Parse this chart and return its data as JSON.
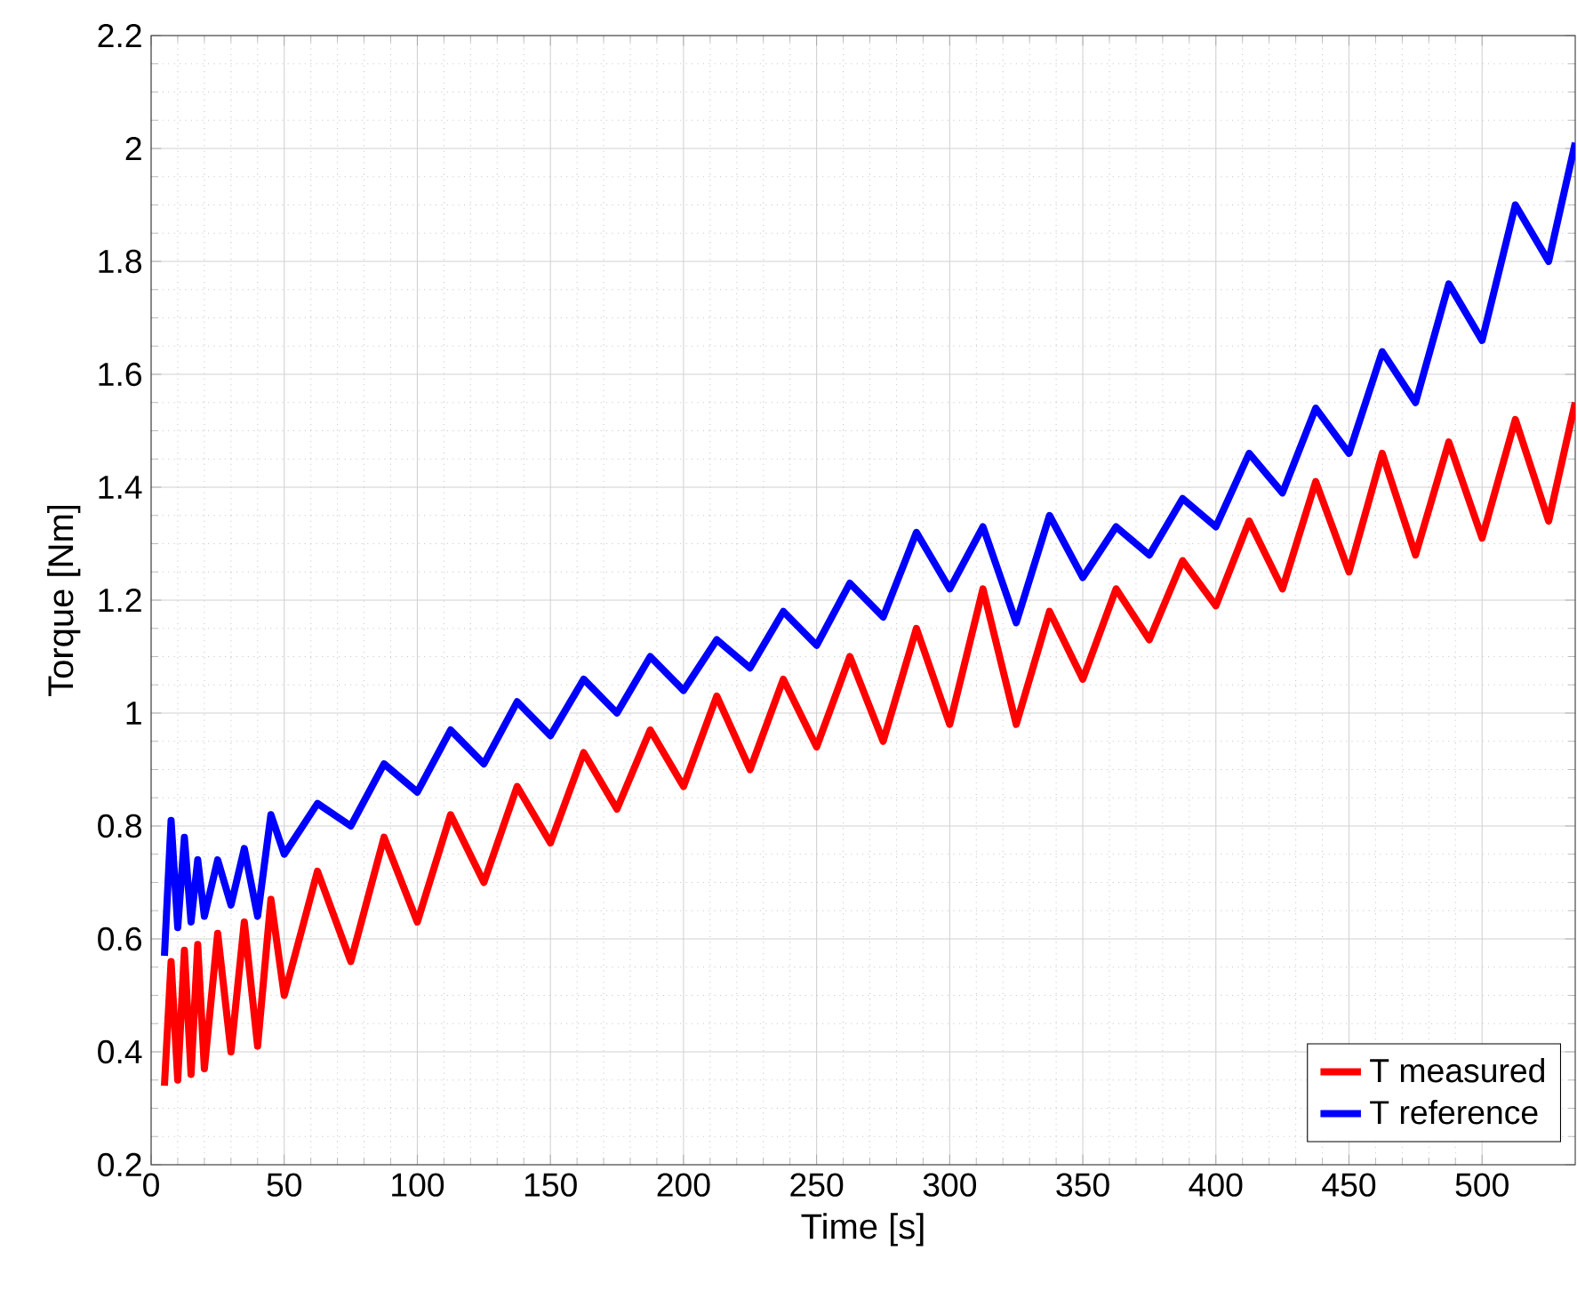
{
  "chart_data": {
    "type": "line",
    "xlabel": "Time [s]",
    "ylabel": "Torque [Nm]",
    "xlim": [
      0,
      535
    ],
    "ylim": [
      0.2,
      2.2
    ],
    "xticks": [
      0,
      50,
      100,
      150,
      200,
      250,
      300,
      350,
      400,
      450,
      500
    ],
    "yticks": [
      0.2,
      0.4,
      0.6,
      0.8,
      1,
      1.2,
      1.4,
      1.6,
      1.8,
      2,
      2.2
    ],
    "grid": true,
    "legend": "bottom right",
    "marker": "none",
    "line_style": "solid",
    "series": [
      {
        "name": "T measured",
        "color": "#ff0000",
        "x": [
          5,
          7.5,
          10,
          12.5,
          15,
          17.5,
          20,
          25,
          30,
          35,
          40,
          45,
          50,
          62.5,
          75,
          87.5,
          100,
          112.5,
          125,
          137.5,
          150,
          162.5,
          175,
          187.5,
          200,
          212.5,
          225,
          237.5,
          250,
          262.5,
          275,
          287.5,
          300,
          312.5,
          325,
          337.5,
          350,
          362.5,
          375,
          387.5,
          400,
          412.5,
          425,
          437.5,
          450,
          462.5,
          475,
          487.5,
          500,
          512.5,
          525,
          535
        ],
        "values": [
          0.34,
          0.56,
          0.35,
          0.58,
          0.36,
          0.59,
          0.37,
          0.61,
          0.4,
          0.63,
          0.41,
          0.67,
          0.5,
          0.72,
          0.56,
          0.78,
          0.63,
          0.82,
          0.7,
          0.87,
          0.77,
          0.93,
          0.83,
          0.97,
          0.87,
          1.03,
          0.9,
          1.06,
          0.94,
          1.1,
          0.95,
          1.15,
          0.98,
          1.22,
          0.98,
          1.18,
          1.06,
          1.22,
          1.13,
          1.27,
          1.19,
          1.34,
          1.22,
          1.41,
          1.25,
          1.46,
          1.28,
          1.48,
          1.31,
          1.52,
          1.34,
          1.55
        ]
      },
      {
        "name": "T reference",
        "color": "#0000ff",
        "x": [
          5,
          7.5,
          10,
          12.5,
          15,
          17.5,
          20,
          25,
          30,
          35,
          40,
          45,
          50,
          62.5,
          75,
          87.5,
          100,
          112.5,
          125,
          137.5,
          150,
          162.5,
          175,
          187.5,
          200,
          212.5,
          225,
          237.5,
          250,
          262.5,
          275,
          287.5,
          300,
          312.5,
          325,
          337.5,
          350,
          362.5,
          375,
          387.5,
          400,
          412.5,
          425,
          437.5,
          450,
          462.5,
          475,
          487.5,
          500,
          512.5,
          525,
          535
        ],
        "values": [
          0.57,
          0.81,
          0.62,
          0.78,
          0.63,
          0.74,
          0.64,
          0.74,
          0.66,
          0.76,
          0.64,
          0.82,
          0.75,
          0.84,
          0.8,
          0.91,
          0.86,
          0.97,
          0.91,
          1.02,
          0.96,
          1.06,
          1.0,
          1.1,
          1.04,
          1.13,
          1.08,
          1.18,
          1.12,
          1.23,
          1.17,
          1.32,
          1.22,
          1.33,
          1.16,
          1.35,
          1.24,
          1.33,
          1.28,
          1.38,
          1.33,
          1.46,
          1.39,
          1.54,
          1.46,
          1.64,
          1.55,
          1.76,
          1.66,
          1.9,
          1.8,
          2.01
        ]
      }
    ]
  }
}
